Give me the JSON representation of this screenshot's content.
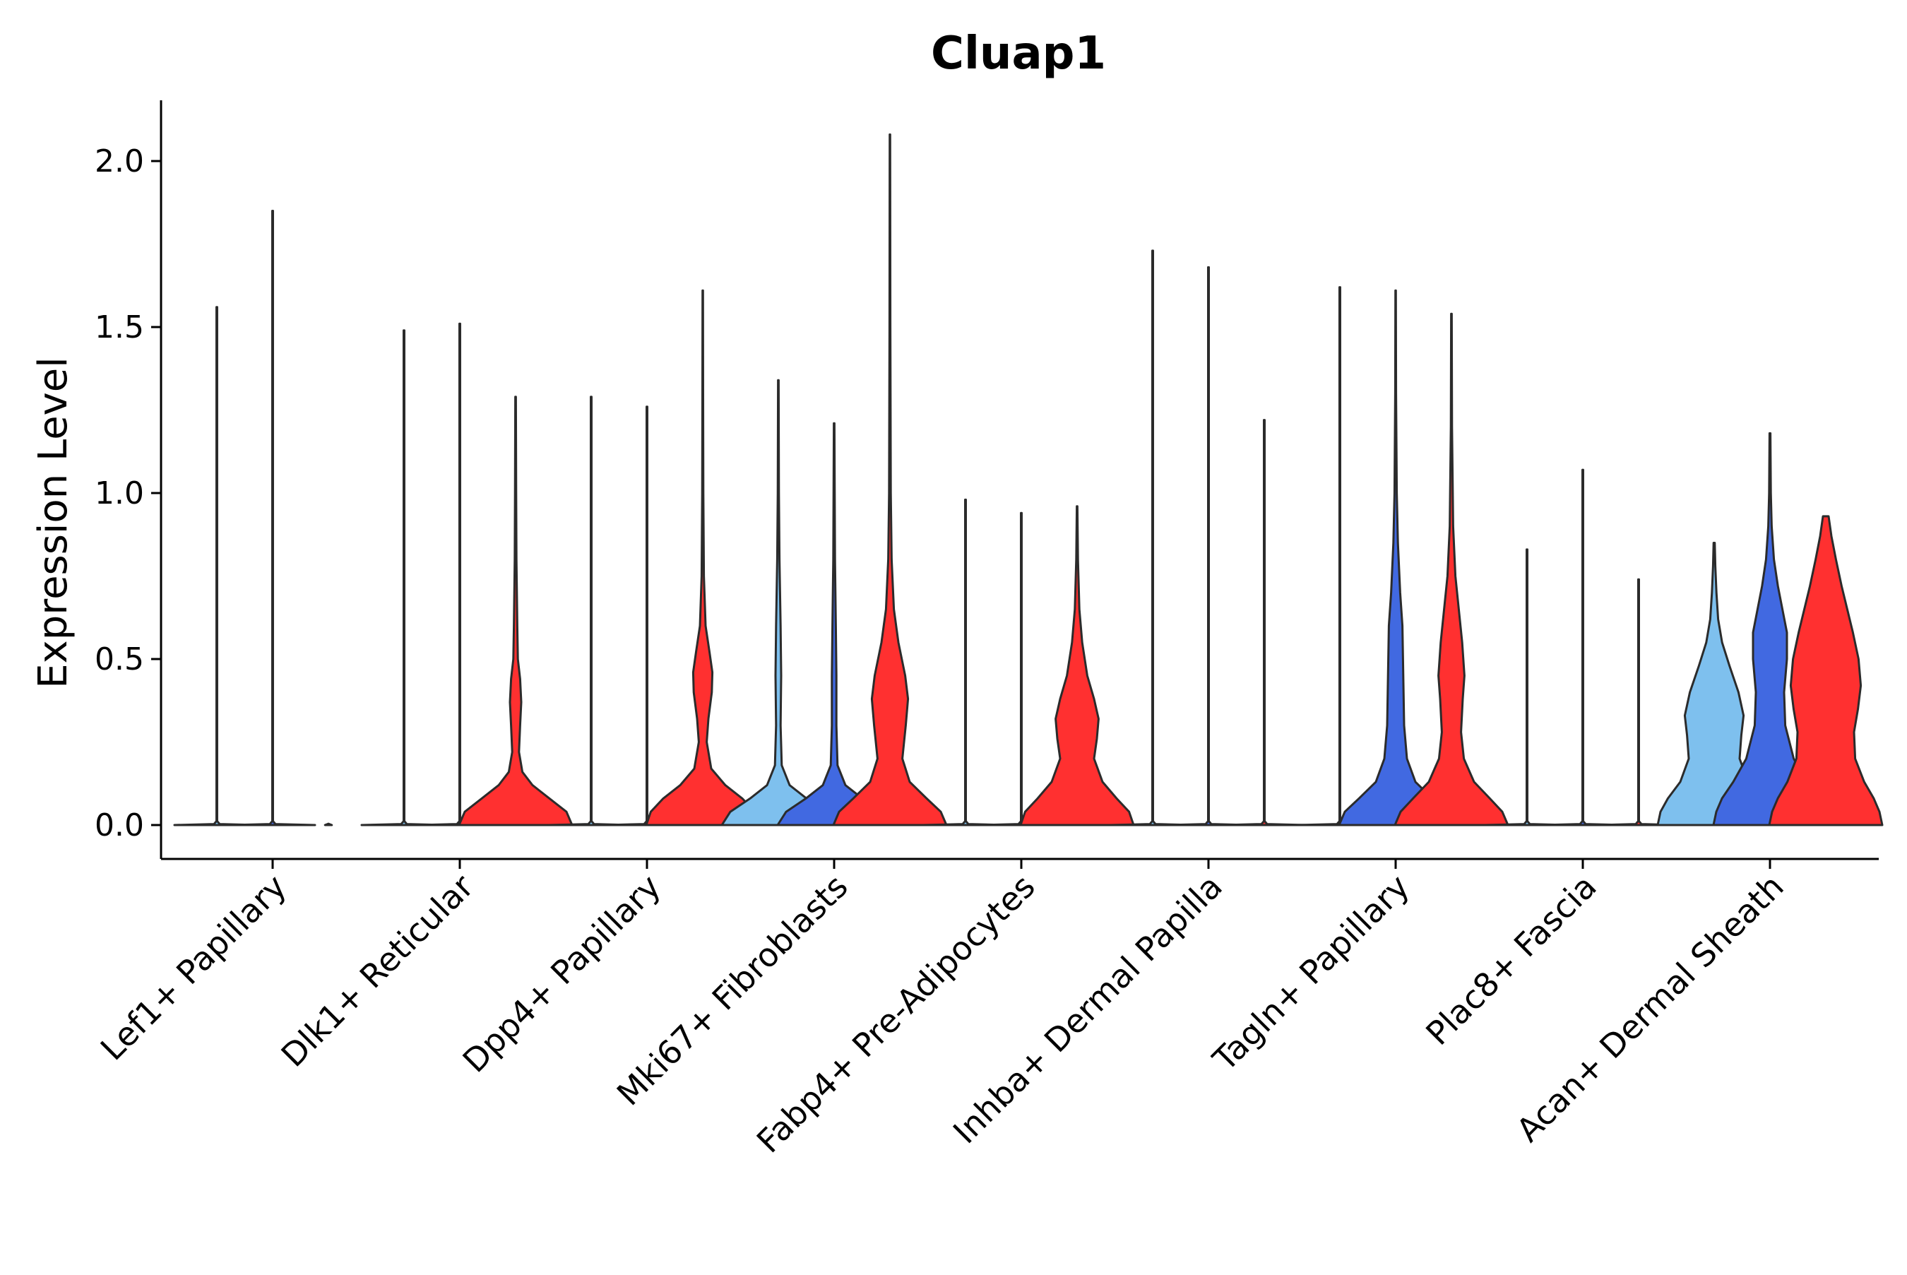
{
  "chart_data": {
    "type": "violin",
    "title": "Cluap1",
    "xlabel": "",
    "ylabel": "Expression Level",
    "ylim": [
      -0.1,
      2.2
    ],
    "yticks": [
      0.0,
      0.5,
      1.0,
      1.5,
      2.0
    ],
    "ytick_labels": [
      "0.0",
      "0.5",
      "1.0",
      "1.5",
      "2.0"
    ],
    "grid": false,
    "legend": "none",
    "series_colors": {
      "light": "#7ec0ee",
      "blue": "#4169e1",
      "red": "#ff3030"
    },
    "categories": [
      {
        "label": "Lef1+ Papillary",
        "violins": [
          {
            "color": "light",
            "max": 1.56,
            "profile": []
          },
          {
            "color": "blue",
            "max": 1.85,
            "profile": []
          },
          {
            "color": "red",
            "max": 0.0,
            "profile": []
          }
        ]
      },
      {
        "label": "Dlk1+ Reticular",
        "violins": [
          {
            "color": "light",
            "max": 1.49,
            "profile": []
          },
          {
            "color": "blue",
            "max": 1.51,
            "profile": []
          },
          {
            "color": "red",
            "max": 1.29,
            "profile": [
              [
                0,
                1
              ],
              [
                0.04,
                0.9
              ],
              [
                0.08,
                0.6
              ],
              [
                0.12,
                0.3
              ],
              [
                0.16,
                0.12
              ],
              [
                0.22,
                0.06
              ],
              [
                0.3,
                0.08
              ],
              [
                0.37,
                0.1
              ],
              [
                0.44,
                0.08
              ],
              [
                0.5,
                0.04
              ],
              [
                0.6,
                0.03
              ],
              [
                0.8,
                0.015
              ],
              [
                1.0,
                0.01
              ],
              [
                1.29,
                0.005
              ]
            ]
          }
        ]
      },
      {
        "label": "Dpp4+ Papillary",
        "violins": [
          {
            "color": "light",
            "max": 1.29,
            "profile": []
          },
          {
            "color": "blue",
            "max": 1.26,
            "profile": []
          },
          {
            "color": "red",
            "max": 1.61,
            "profile": [
              [
                0,
                1
              ],
              [
                0.04,
                0.92
              ],
              [
                0.08,
                0.7
              ],
              [
                0.12,
                0.4
              ],
              [
                0.17,
                0.15
              ],
              [
                0.25,
                0.07
              ],
              [
                0.32,
                0.1
              ],
              [
                0.4,
                0.16
              ],
              [
                0.46,
                0.17
              ],
              [
                0.52,
                0.12
              ],
              [
                0.6,
                0.05
              ],
              [
                0.75,
                0.02
              ],
              [
                1.0,
                0.01
              ],
              [
                1.3,
                0.006
              ],
              [
                1.61,
                0.004
              ]
            ]
          }
        ]
      },
      {
        "label": "Mki67+ Fibroblasts",
        "violins": [
          {
            "color": "light",
            "max": 1.34,
            "profile": [
              [
                0,
                1
              ],
              [
                0.04,
                0.85
              ],
              [
                0.08,
                0.5
              ],
              [
                0.12,
                0.2
              ],
              [
                0.18,
                0.06
              ],
              [
                0.3,
                0.04
              ],
              [
                0.45,
                0.05
              ],
              [
                0.6,
                0.04
              ],
              [
                0.8,
                0.02
              ],
              [
                1.0,
                0.01
              ],
              [
                1.34,
                0.005
              ]
            ]
          },
          {
            "color": "blue",
            "max": 1.21,
            "profile": [
              [
                0,
                1
              ],
              [
                0.04,
                0.85
              ],
              [
                0.08,
                0.5
              ],
              [
                0.12,
                0.2
              ],
              [
                0.18,
                0.06
              ],
              [
                0.3,
                0.04
              ],
              [
                0.45,
                0.04
              ],
              [
                0.6,
                0.03
              ],
              [
                0.8,
                0.015
              ],
              [
                1.0,
                0.01
              ],
              [
                1.21,
                0.005
              ]
            ]
          },
          {
            "color": "red",
            "max": 2.08,
            "profile": [
              [
                0,
                1
              ],
              [
                0.04,
                0.9
              ],
              [
                0.08,
                0.65
              ],
              [
                0.13,
                0.35
              ],
              [
                0.2,
                0.22
              ],
              [
                0.3,
                0.28
              ],
              [
                0.38,
                0.32
              ],
              [
                0.45,
                0.27
              ],
              [
                0.55,
                0.15
              ],
              [
                0.65,
                0.07
              ],
              [
                0.8,
                0.03
              ],
              [
                1.0,
                0.015
              ],
              [
                1.5,
                0.008
              ],
              [
                2.08,
                0.004
              ]
            ]
          }
        ]
      },
      {
        "label": "Fabp4+ Pre-Adipocytes",
        "violins": [
          {
            "color": "light",
            "max": 0.98,
            "profile": []
          },
          {
            "color": "blue",
            "max": 0.94,
            "profile": []
          },
          {
            "color": "red",
            "max": 0.96,
            "profile": [
              [
                0,
                1
              ],
              [
                0.04,
                0.92
              ],
              [
                0.08,
                0.7
              ],
              [
                0.13,
                0.45
              ],
              [
                0.2,
                0.3
              ],
              [
                0.26,
                0.35
              ],
              [
                0.32,
                0.38
              ],
              [
                0.38,
                0.3
              ],
              [
                0.45,
                0.18
              ],
              [
                0.55,
                0.09
              ],
              [
                0.65,
                0.04
              ],
              [
                0.8,
                0.015
              ],
              [
                0.96,
                0.005
              ]
            ]
          }
        ]
      },
      {
        "label": "Inhba+ Dermal Papilla",
        "violins": [
          {
            "color": "light",
            "max": 1.73,
            "profile": []
          },
          {
            "color": "blue",
            "max": 1.68,
            "profile": []
          },
          {
            "color": "red",
            "max": 1.22,
            "profile": []
          }
        ]
      },
      {
        "label": "Tagln+ Papillary",
        "violins": [
          {
            "color": "light",
            "max": 1.62,
            "profile": []
          },
          {
            "color": "blue",
            "max": 1.61,
            "profile": [
              [
                0,
                1
              ],
              [
                0.04,
                0.9
              ],
              [
                0.08,
                0.65
              ],
              [
                0.13,
                0.35
              ],
              [
                0.2,
                0.2
              ],
              [
                0.3,
                0.15
              ],
              [
                0.4,
                0.14
              ],
              [
                0.5,
                0.13
              ],
              [
                0.6,
                0.12
              ],
              [
                0.7,
                0.08
              ],
              [
                0.85,
                0.04
              ],
              [
                1.0,
                0.02
              ],
              [
                1.3,
                0.008
              ],
              [
                1.61,
                0.004
              ]
            ]
          },
          {
            "color": "red",
            "max": 1.54,
            "profile": [
              [
                0,
                1
              ],
              [
                0.04,
                0.9
              ],
              [
                0.08,
                0.68
              ],
              [
                0.13,
                0.4
              ],
              [
                0.2,
                0.22
              ],
              [
                0.28,
                0.17
              ],
              [
                0.38,
                0.2
              ],
              [
                0.45,
                0.23
              ],
              [
                0.55,
                0.19
              ],
              [
                0.65,
                0.13
              ],
              [
                0.75,
                0.07
              ],
              [
                0.9,
                0.03
              ],
              [
                1.2,
                0.01
              ],
              [
                1.54,
                0.005
              ]
            ]
          }
        ]
      },
      {
        "label": "Plac8+ Fascia",
        "violins": [
          {
            "color": "light",
            "max": 0.83,
            "profile": []
          },
          {
            "color": "blue",
            "max": 1.07,
            "profile": []
          },
          {
            "color": "red",
            "max": 0.74,
            "profile": []
          }
        ]
      },
      {
        "label": "Acan+ Dermal Sheath",
        "violins": [
          {
            "color": "light",
            "max": 0.85,
            "profile": [
              [
                0,
                1
              ],
              [
                0.04,
                0.95
              ],
              [
                0.08,
                0.82
              ],
              [
                0.13,
                0.6
              ],
              [
                0.2,
                0.45
              ],
              [
                0.27,
                0.48
              ],
              [
                0.33,
                0.52
              ],
              [
                0.4,
                0.43
              ],
              [
                0.48,
                0.27
              ],
              [
                0.55,
                0.14
              ],
              [
                0.62,
                0.07
              ],
              [
                0.7,
                0.04
              ],
              [
                0.78,
                0.02
              ],
              [
                0.85,
                0.01
              ]
            ]
          },
          {
            "color": "blue",
            "max": 1.18,
            "profile": [
              [
                0,
                1
              ],
              [
                0.04,
                0.95
              ],
              [
                0.08,
                0.85
              ],
              [
                0.13,
                0.65
              ],
              [
                0.2,
                0.42
              ],
              [
                0.3,
                0.27
              ],
              [
                0.4,
                0.25
              ],
              [
                0.5,
                0.3
              ],
              [
                0.58,
                0.3
              ],
              [
                0.65,
                0.22
              ],
              [
                0.72,
                0.14
              ],
              [
                0.8,
                0.07
              ],
              [
                0.9,
                0.03
              ],
              [
                1.0,
                0.015
              ],
              [
                1.18,
                0.008
              ]
            ]
          },
          {
            "color": "red",
            "max": 0.93,
            "profile": [
              [
                0,
                1
              ],
              [
                0.04,
                0.95
              ],
              [
                0.08,
                0.85
              ],
              [
                0.13,
                0.68
              ],
              [
                0.2,
                0.52
              ],
              [
                0.28,
                0.5
              ],
              [
                0.35,
                0.57
              ],
              [
                0.42,
                0.62
              ],
              [
                0.5,
                0.58
              ],
              [
                0.58,
                0.48
              ],
              [
                0.65,
                0.38
              ],
              [
                0.72,
                0.28
              ],
              [
                0.8,
                0.18
              ],
              [
                0.87,
                0.1
              ],
              [
                0.93,
                0.05
              ]
            ]
          }
        ]
      }
    ]
  }
}
